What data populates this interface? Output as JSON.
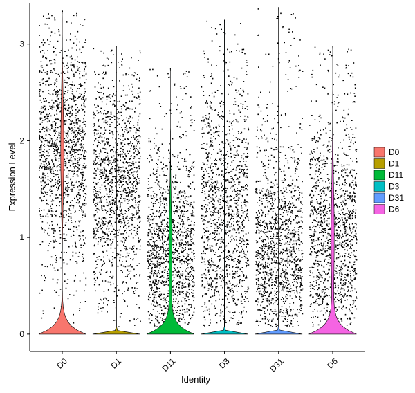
{
  "chart_data": {
    "type": "violin",
    "xlabel": "Identity",
    "ylabel": "Expression Level",
    "ylim": [
      -0.18,
      3.42
    ],
    "yticks": [
      0,
      1,
      2,
      3
    ],
    "categories": [
      "D0",
      "D1",
      "D11",
      "D3",
      "D31",
      "D6"
    ],
    "colors": {
      "D0": "#F8766D",
      "D1": "#B79F00",
      "D11": "#00BA38",
      "D3": "#00BFC4",
      "D31": "#619CFF",
      "D6": "#F564E3"
    },
    "violins": [
      {
        "name": "D0",
        "max": 3.35,
        "dense_low": true,
        "point_center": 1.9,
        "point_spread": 0.55
      },
      {
        "name": "D1",
        "max": 2.98,
        "dense_low": false,
        "point_center": 1.55,
        "point_spread": 0.55
      },
      {
        "name": "D11",
        "max": 2.75,
        "dense_low": true,
        "point_center": 0.85,
        "point_spread": 0.5
      },
      {
        "name": "D3",
        "max": 3.25,
        "dense_low": false,
        "point_center": 1.2,
        "point_spread": 0.7
      },
      {
        "name": "D31",
        "max": 3.38,
        "dense_low": false,
        "point_center": 0.85,
        "point_spread": 0.55
      },
      {
        "name": "D6",
        "max": 2.98,
        "dense_low": true,
        "point_center": 1.0,
        "point_spread": 0.6
      }
    ],
    "legend": {
      "position": "right",
      "entries": [
        "D0",
        "D1",
        "D11",
        "D3",
        "D31",
        "D6"
      ]
    },
    "grid": false
  }
}
